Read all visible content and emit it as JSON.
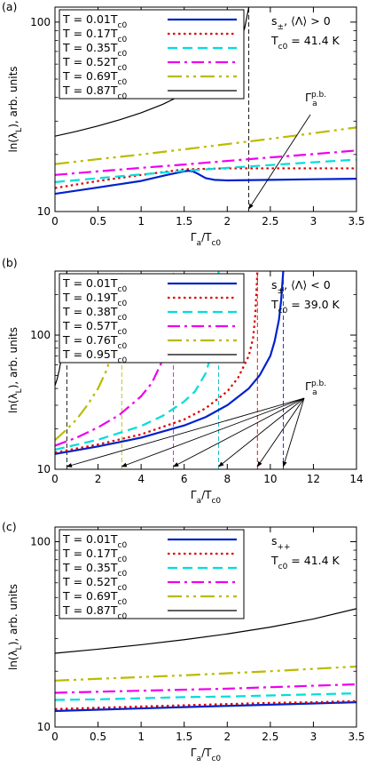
{
  "chart_data": [
    {
      "panel_label": "(a)",
      "type": "line",
      "xlabel": "Γa/Tc0",
      "ylabel": "ln(λL), arb. units",
      "xlim": [
        0,
        3.5
      ],
      "ylim": [
        10,
        120
      ],
      "yscale": "log",
      "xticks": [
        0,
        0.5,
        1,
        1.5,
        2,
        2.5,
        3,
        3.5
      ],
      "xtick_labels": [
        "0",
        "0.5",
        "1",
        "1.5",
        "2",
        "2.5",
        "3",
        "3.5"
      ],
      "yticks": [
        10,
        100
      ],
      "ytick_labels": [
        "10",
        "100"
      ],
      "annotation_lines": [
        "s±, ⟨Λ⟩ > 0",
        "Tc0 = 41.4 K"
      ],
      "arrow_label": "Γap.b.",
      "pair_breaking": [
        {
          "x": 2.25,
          "color": "#000000",
          "top": "curve"
        }
      ],
      "legend_placement": "top-left",
      "series": [
        {
          "name": "T = 0.01Tc0",
          "color": "#0022cc",
          "style": "solid",
          "width": 2.2,
          "x": [
            0,
            0.5,
            1,
            1.3,
            1.5,
            1.55,
            1.6,
            1.65,
            1.75,
            1.85,
            2,
            2.5,
            3,
            3.5
          ],
          "y": [
            12.4,
            13.4,
            14.5,
            15.6,
            16.3,
            16.4,
            16.3,
            15.9,
            15.0,
            14.7,
            14.6,
            14.7,
            14.8,
            14.9
          ]
        },
        {
          "name": "T = 0.17Tc0",
          "color": "#dd0000",
          "style": "dot",
          "width": 2.2,
          "x": [
            0,
            0.5,
            1,
            1.5,
            1.75,
            2,
            2.5,
            3,
            3.5
          ],
          "y": [
            13.3,
            14.5,
            15.6,
            16.7,
            16.8,
            16.9,
            16.9,
            16.9,
            16.9
          ]
        },
        {
          "name": "T = 0.35Tc0",
          "color": "#00dddd",
          "style": "dash",
          "width": 2.2,
          "x": [
            0,
            0.5,
            1,
            1.5,
            2,
            2.5,
            3,
            3.5
          ],
          "y": [
            14.3,
            15.0,
            15.7,
            16.4,
            17.0,
            17.6,
            18.2,
            18.8
          ]
        },
        {
          "name": "T = 0.52Tc0",
          "color": "#ee00ee",
          "style": "dashdot",
          "width": 2.2,
          "x": [
            0,
            0.5,
            1,
            1.5,
            2,
            2.5,
            3,
            3.5
          ],
          "y": [
            15.6,
            16.3,
            17.0,
            17.7,
            18.5,
            19.3,
            20.1,
            21.0
          ]
        },
        {
          "name": "T = 0.69Tc0",
          "color": "#bbbb00",
          "style": "dashdotdot",
          "width": 2.2,
          "x": [
            0,
            0.5,
            1,
            1.5,
            2,
            2.5,
            3,
            3.5
          ],
          "y": [
            17.8,
            18.9,
            20.0,
            21.3,
            22.7,
            24.2,
            25.9,
            27.8
          ]
        },
        {
          "name": "T = 0.87Tc0",
          "color": "#000000",
          "style": "solid",
          "width": 1.2,
          "x": [
            0,
            0.25,
            0.5,
            0.75,
            1,
            1.25,
            1.5,
            1.75,
            2,
            2.1,
            2.2,
            2.25
          ],
          "y": [
            25,
            26.5,
            28.3,
            30.5,
            33.2,
            36.8,
            41.8,
            49.5,
            63,
            73,
            92,
            120
          ]
        }
      ]
    },
    {
      "panel_label": "(b)",
      "type": "line",
      "xlabel": "Γa/Tc0",
      "ylabel": "ln(λL), arb. units",
      "xlim": [
        0,
        14
      ],
      "ylim": [
        10,
        300
      ],
      "yscale": "log",
      "xticks": [
        0,
        2,
        4,
        6,
        8,
        10,
        12,
        14
      ],
      "xtick_labels": [
        "0",
        "2",
        "4",
        "6",
        "8",
        "10",
        "12",
        "14"
      ],
      "yticks": [
        10,
        100
      ],
      "ytick_labels": [
        "10",
        "100"
      ],
      "annotation_lines": [
        "s±, ⟨Λ⟩ < 0",
        "Tc0 = 39.0 K"
      ],
      "arrow_label": "Γap.b.",
      "pair_breaking": [
        {
          "x": 10.6,
          "color": "#0022cc"
        },
        {
          "x": 9.4,
          "color": "#dd0000"
        },
        {
          "x": 7.6,
          "color": "#00bbbb"
        },
        {
          "x": 5.5,
          "color": "#ee00ee"
        },
        {
          "x": 3.1,
          "color": "#bbbb00"
        },
        {
          "x": 0.55,
          "color": "#000000"
        }
      ],
      "legend_placement": "top-left",
      "series": [
        {
          "name": "T = 0.01Tc0",
          "color": "#0022cc",
          "style": "solid",
          "width": 2.2,
          "x": [
            0,
            2,
            4,
            6,
            7,
            8,
            9,
            9.5,
            10,
            10.2,
            10.4,
            10.5,
            10.6
          ],
          "y": [
            13.0,
            14.8,
            17.2,
            21.2,
            24.5,
            30,
            40,
            50,
            70,
            90,
            130,
            180,
            300
          ]
        },
        {
          "name": "T = 0.19Tc0",
          "color": "#dd0000",
          "style": "dot",
          "width": 2.2,
          "x": [
            0,
            2,
            4,
            6,
            7,
            8,
            8.5,
            9,
            9.2,
            9.3,
            9.4
          ],
          "y": [
            13.3,
            15.3,
            18.2,
            23.5,
            28.5,
            38,
            48,
            70,
            95,
            140,
            300
          ]
        },
        {
          "name": "T = 0.38Tc0",
          "color": "#00dddd",
          "style": "dash",
          "width": 2.2,
          "x": [
            0,
            2,
            4,
            5,
            6,
            6.5,
            7,
            7.3,
            7.5,
            7.6
          ],
          "y": [
            14.0,
            16.6,
            21.0,
            25,
            32,
            38,
            52,
            75,
            130,
            300
          ]
        },
        {
          "name": "T = 0.57Tc0",
          "color": "#ee00ee",
          "style": "dashdot",
          "width": 2.2,
          "x": [
            0,
            1,
            2,
            3,
            4,
            4.5,
            5,
            5.2,
            5.4,
            5.5
          ],
          "y": [
            15.0,
            17.2,
            20.5,
            25.5,
            35,
            44,
            65,
            90,
            160,
            300
          ]
        },
        {
          "name": "T = 0.76Tc0",
          "color": "#bbbb00",
          "style": "dashdotdot",
          "width": 2.2,
          "x": [
            0,
            0.5,
            1,
            1.5,
            2,
            2.4,
            2.7,
            2.9,
            3.0,
            3.1
          ],
          "y": [
            16.5,
            19.5,
            23.5,
            30,
            40,
            55,
            80,
            120,
            180,
            300
          ]
        },
        {
          "name": "T = 0.95Tc0",
          "color": "#000000",
          "style": "solid",
          "width": 1.2,
          "x": [
            0,
            0.1,
            0.2,
            0.3,
            0.4,
            0.5,
            0.55
          ],
          "y": [
            42,
            47,
            55,
            68,
            95,
            170,
            300
          ]
        }
      ]
    },
    {
      "panel_label": "(c)",
      "type": "line",
      "xlabel": "Γa/Tc0",
      "ylabel": "ln(λL), arb. units",
      "xlim": [
        0,
        3.5
      ],
      "ylim": [
        10,
        120
      ],
      "yscale": "log",
      "xticks": [
        0,
        0.5,
        1,
        1.5,
        2,
        2.5,
        3,
        3.5
      ],
      "xtick_labels": [
        "0",
        "0.5",
        "1",
        "1.5",
        "2",
        "2.5",
        "3",
        "3.5"
      ],
      "yticks": [
        10,
        100
      ],
      "ytick_labels": [
        "10",
        "100"
      ],
      "annotation_lines": [
        "s++",
        "Tc0 = 41.4 K"
      ],
      "legend_placement": "top-left",
      "series": [
        {
          "name": "T = 0.01Tc0",
          "color": "#0022cc",
          "style": "solid",
          "width": 2.2,
          "x": [
            0,
            0.5,
            1,
            1.5,
            2,
            2.5,
            3,
            3.5
          ],
          "y": [
            12.2,
            12.4,
            12.6,
            12.8,
            13.0,
            13.2,
            13.4,
            13.6
          ]
        },
        {
          "name": "T = 0.17Tc0",
          "color": "#dd0000",
          "style": "dot",
          "width": 2.2,
          "x": [
            0,
            0.5,
            1,
            1.5,
            2,
            2.5,
            3,
            3.5
          ],
          "y": [
            12.5,
            12.7,
            12.9,
            13.1,
            13.3,
            13.5,
            13.6,
            13.8
          ]
        },
        {
          "name": "T = 0.35Tc0",
          "color": "#00dddd",
          "style": "dash",
          "width": 2.2,
          "x": [
            0,
            0.5,
            1,
            1.5,
            2,
            2.5,
            3,
            3.5
          ],
          "y": [
            14.0,
            14.1,
            14.3,
            14.5,
            14.6,
            14.8,
            15.0,
            15.2
          ]
        },
        {
          "name": "T = 0.52Tc0",
          "color": "#ee00ee",
          "style": "dashdot",
          "width": 2.2,
          "x": [
            0,
            0.5,
            1,
            1.5,
            2,
            2.5,
            3,
            3.5
          ],
          "y": [
            15.3,
            15.5,
            15.7,
            15.9,
            16.1,
            16.4,
            16.7,
            17.0
          ]
        },
        {
          "name": "T = 0.69Tc0",
          "color": "#bbbb00",
          "style": "dashdotdot",
          "width": 2.2,
          "x": [
            0,
            0.5,
            1,
            1.5,
            2,
            2.5,
            3,
            3.5
          ],
          "y": [
            17.8,
            18.2,
            18.6,
            19.0,
            19.5,
            20.0,
            20.6,
            21.2
          ]
        },
        {
          "name": "T = 0.87Tc0",
          "color": "#000000",
          "style": "solid",
          "width": 1.2,
          "x": [
            0,
            0.5,
            1,
            1.5,
            2,
            2.5,
            3,
            3.5
          ],
          "y": [
            25.0,
            26.3,
            27.8,
            29.6,
            31.8,
            34.6,
            38.3,
            43.5
          ]
        }
      ]
    }
  ]
}
